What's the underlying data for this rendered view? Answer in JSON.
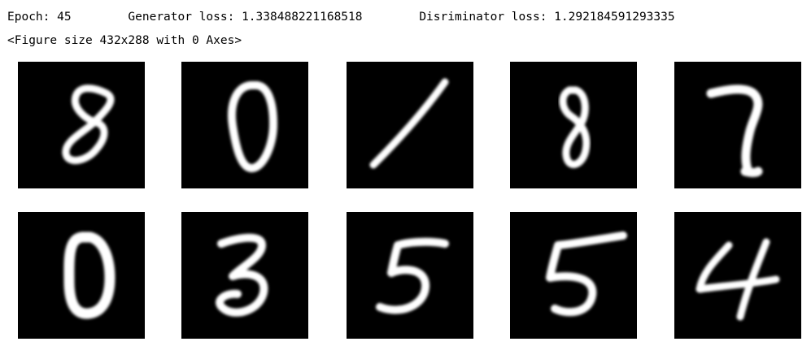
{
  "output": {
    "line1": "Epoch: 45        Generator loss: 1.338488221168518        Disriminator loss: 1.292184591293335",
    "line2": "<Figure size 432x288 with 0 Axes>"
  },
  "figure": {
    "rows": 2,
    "cols": 5,
    "background_color": "#000000",
    "foreground_color": "#ffffff",
    "digits": [
      "8",
      "0",
      "1",
      "8",
      "7",
      "0",
      "3",
      "5",
      "5",
      "4"
    ]
  }
}
